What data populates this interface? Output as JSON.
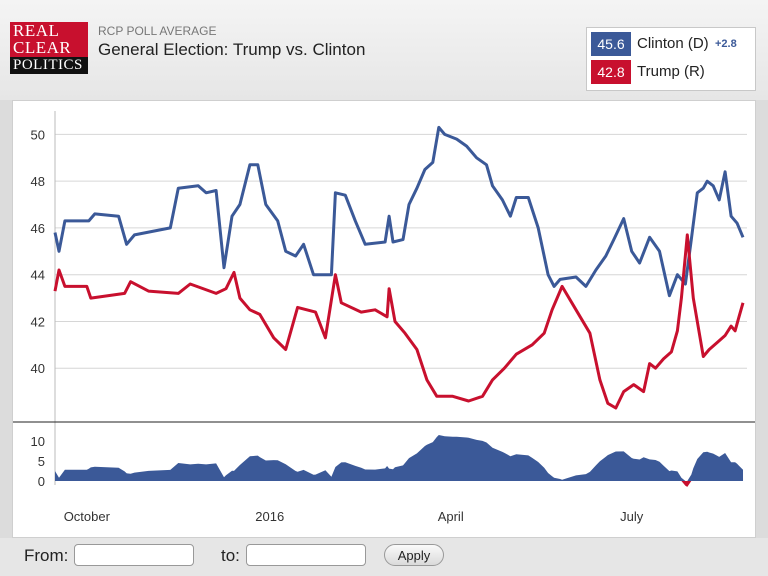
{
  "logo": {
    "line1": "REAL",
    "line2": "CLEAR",
    "line3": "POLITICS"
  },
  "header": {
    "kicker": "RCP POLL AVERAGE",
    "title": "General Election: Trump vs. Clinton"
  },
  "legend": [
    {
      "value": "45.6",
      "name": "Clinton (D)",
      "diff": "+2.8",
      "color": "#3b5998"
    },
    {
      "value": "42.8",
      "name": "Trump (R)",
      "diff": "",
      "color": "#c8102e"
    }
  ],
  "footer": {
    "from_label": "From:",
    "to_label": "to:",
    "from_value": "",
    "to_value": "",
    "apply_label": "Apply"
  },
  "chart_data": {
    "type": "line",
    "x_range": [
      "2015-09-15",
      "2016-08-28"
    ],
    "x_ticks": [
      {
        "label": "October",
        "date": "2015-10-01"
      },
      {
        "label": "2016",
        "date": "2016-01-01"
      },
      {
        "label": "April",
        "date": "2016-04-01"
      },
      {
        "label": "July",
        "date": "2016-07-01"
      }
    ],
    "main": {
      "ylim": [
        38,
        51
      ],
      "yticks": [
        40,
        42,
        44,
        46,
        48,
        50
      ],
      "grid": true
    },
    "spread": {
      "ylim": [
        -1,
        12
      ],
      "yticks": [
        0,
        5,
        10
      ],
      "color": "#3b5998",
      "neg_color": "#c8102e"
    },
    "series": [
      {
        "name": "Clinton (D)",
        "color": "#3b5998",
        "points": [
          [
            "2015-09-15",
            45.8
          ],
          [
            "2015-09-17",
            45.0
          ],
          [
            "2015-09-20",
            46.3
          ],
          [
            "2015-10-02",
            46.3
          ],
          [
            "2015-10-05",
            46.6
          ],
          [
            "2015-10-17",
            46.5
          ],
          [
            "2015-10-21",
            45.3
          ],
          [
            "2015-10-25",
            45.7
          ],
          [
            "2015-11-12",
            46.0
          ],
          [
            "2015-11-16",
            47.7
          ],
          [
            "2015-11-26",
            47.8
          ],
          [
            "2015-11-30",
            47.5
          ],
          [
            "2015-12-05",
            47.6
          ],
          [
            "2015-12-09",
            44.3
          ],
          [
            "2015-12-13",
            46.5
          ],
          [
            "2015-12-17",
            47.0
          ],
          [
            "2015-12-22",
            48.7
          ],
          [
            "2015-12-26",
            48.7
          ],
          [
            "2015-12-30",
            47.0
          ],
          [
            "2016-01-05",
            46.3
          ],
          [
            "2016-01-09",
            45.0
          ],
          [
            "2016-01-14",
            44.8
          ],
          [
            "2016-01-18",
            45.3
          ],
          [
            "2016-01-23",
            44.0
          ],
          [
            "2016-02-01",
            44.0
          ],
          [
            "2016-02-03",
            47.5
          ],
          [
            "2016-02-08",
            47.4
          ],
          [
            "2016-02-13",
            46.3
          ],
          [
            "2016-02-18",
            45.3
          ],
          [
            "2016-02-28",
            45.4
          ],
          [
            "2016-03-01",
            46.5
          ],
          [
            "2016-03-03",
            45.4
          ],
          [
            "2016-03-08",
            45.5
          ],
          [
            "2016-03-11",
            47.0
          ],
          [
            "2016-03-15",
            47.7
          ],
          [
            "2016-03-19",
            48.5
          ],
          [
            "2016-03-23",
            48.8
          ],
          [
            "2016-03-26",
            50.3
          ],
          [
            "2016-03-29",
            50.0
          ],
          [
            "2016-04-04",
            49.8
          ],
          [
            "2016-04-09",
            49.5
          ],
          [
            "2016-04-14",
            49.0
          ],
          [
            "2016-04-19",
            48.7
          ],
          [
            "2016-04-22",
            47.8
          ],
          [
            "2016-04-27",
            47.2
          ],
          [
            "2016-05-01",
            46.5
          ],
          [
            "2016-05-04",
            47.3
          ],
          [
            "2016-05-10",
            47.3
          ],
          [
            "2016-05-15",
            46.0
          ],
          [
            "2016-05-20",
            44.0
          ],
          [
            "2016-05-23",
            43.5
          ],
          [
            "2016-05-26",
            43.8
          ],
          [
            "2016-06-03",
            43.9
          ],
          [
            "2016-06-08",
            43.5
          ],
          [
            "2016-06-13",
            44.2
          ],
          [
            "2016-06-18",
            44.8
          ],
          [
            "2016-06-22",
            45.5
          ],
          [
            "2016-06-27",
            46.4
          ],
          [
            "2016-07-01",
            45.0
          ],
          [
            "2016-07-05",
            44.5
          ],
          [
            "2016-07-10",
            45.6
          ],
          [
            "2016-07-15",
            45.0
          ],
          [
            "2016-07-20",
            43.1
          ],
          [
            "2016-07-24",
            44.0
          ],
          [
            "2016-07-28",
            43.6
          ],
          [
            "2016-07-31",
            45.5
          ],
          [
            "2016-08-03",
            47.5
          ],
          [
            "2016-08-06",
            47.7
          ],
          [
            "2016-08-08",
            48.0
          ],
          [
            "2016-08-11",
            47.8
          ],
          [
            "2016-08-14",
            47.2
          ],
          [
            "2016-08-17",
            48.4
          ],
          [
            "2016-08-20",
            46.5
          ],
          [
            "2016-08-23",
            46.2
          ],
          [
            "2016-08-26",
            45.6
          ]
        ]
      },
      {
        "name": "Trump (R)",
        "color": "#c8102e",
        "points": [
          [
            "2015-09-15",
            43.3
          ],
          [
            "2015-09-17",
            44.2
          ],
          [
            "2015-09-20",
            43.5
          ],
          [
            "2015-10-01",
            43.5
          ],
          [
            "2015-10-03",
            43.0
          ],
          [
            "2015-10-20",
            43.2
          ],
          [
            "2015-10-23",
            43.7
          ],
          [
            "2015-11-01",
            43.3
          ],
          [
            "2015-11-16",
            43.2
          ],
          [
            "2015-11-22",
            43.6
          ],
          [
            "2015-12-05",
            43.2
          ],
          [
            "2015-12-10",
            43.4
          ],
          [
            "2015-12-14",
            44.1
          ],
          [
            "2015-12-17",
            43.0
          ],
          [
            "2015-12-22",
            42.5
          ],
          [
            "2015-12-27",
            42.3
          ],
          [
            "2016-01-03",
            41.3
          ],
          [
            "2016-01-09",
            40.8
          ],
          [
            "2016-01-15",
            42.6
          ],
          [
            "2016-01-24",
            42.4
          ],
          [
            "2016-01-29",
            41.3
          ],
          [
            "2016-02-03",
            44.0
          ],
          [
            "2016-02-06",
            42.8
          ],
          [
            "2016-02-16",
            42.4
          ],
          [
            "2016-02-23",
            42.5
          ],
          [
            "2016-02-29",
            42.2
          ],
          [
            "2016-03-01",
            43.4
          ],
          [
            "2016-03-04",
            42.0
          ],
          [
            "2016-03-09",
            41.5
          ],
          [
            "2016-03-15",
            40.8
          ],
          [
            "2016-03-20",
            39.5
          ],
          [
            "2016-03-25",
            38.8
          ],
          [
            "2016-04-02",
            38.8
          ],
          [
            "2016-04-10",
            38.6
          ],
          [
            "2016-04-17",
            38.8
          ],
          [
            "2016-04-22",
            39.5
          ],
          [
            "2016-04-28",
            40.0
          ],
          [
            "2016-05-04",
            40.6
          ],
          [
            "2016-05-12",
            41.0
          ],
          [
            "2016-05-18",
            41.5
          ],
          [
            "2016-05-22",
            42.5
          ],
          [
            "2016-05-27",
            43.5
          ],
          [
            "2016-06-03",
            42.5
          ],
          [
            "2016-06-10",
            41.5
          ],
          [
            "2016-06-15",
            39.5
          ],
          [
            "2016-06-19",
            38.5
          ],
          [
            "2016-06-23",
            38.3
          ],
          [
            "2016-06-27",
            39.0
          ],
          [
            "2016-07-02",
            39.3
          ],
          [
            "2016-07-07",
            39.0
          ],
          [
            "2016-07-10",
            40.2
          ],
          [
            "2016-07-13",
            40.0
          ],
          [
            "2016-07-17",
            40.4
          ],
          [
            "2016-07-21",
            40.7
          ],
          [
            "2016-07-24",
            41.6
          ],
          [
            "2016-07-26",
            43.0
          ],
          [
            "2016-07-29",
            45.7
          ],
          [
            "2016-08-01",
            43.0
          ],
          [
            "2016-08-03",
            42.0
          ],
          [
            "2016-08-06",
            40.5
          ],
          [
            "2016-08-09",
            40.8
          ],
          [
            "2016-08-13",
            41.1
          ],
          [
            "2016-08-17",
            41.4
          ],
          [
            "2016-08-20",
            41.8
          ],
          [
            "2016-08-22",
            41.6
          ],
          [
            "2016-08-24",
            42.2
          ],
          [
            "2016-08-26",
            42.8
          ]
        ]
      }
    ]
  }
}
